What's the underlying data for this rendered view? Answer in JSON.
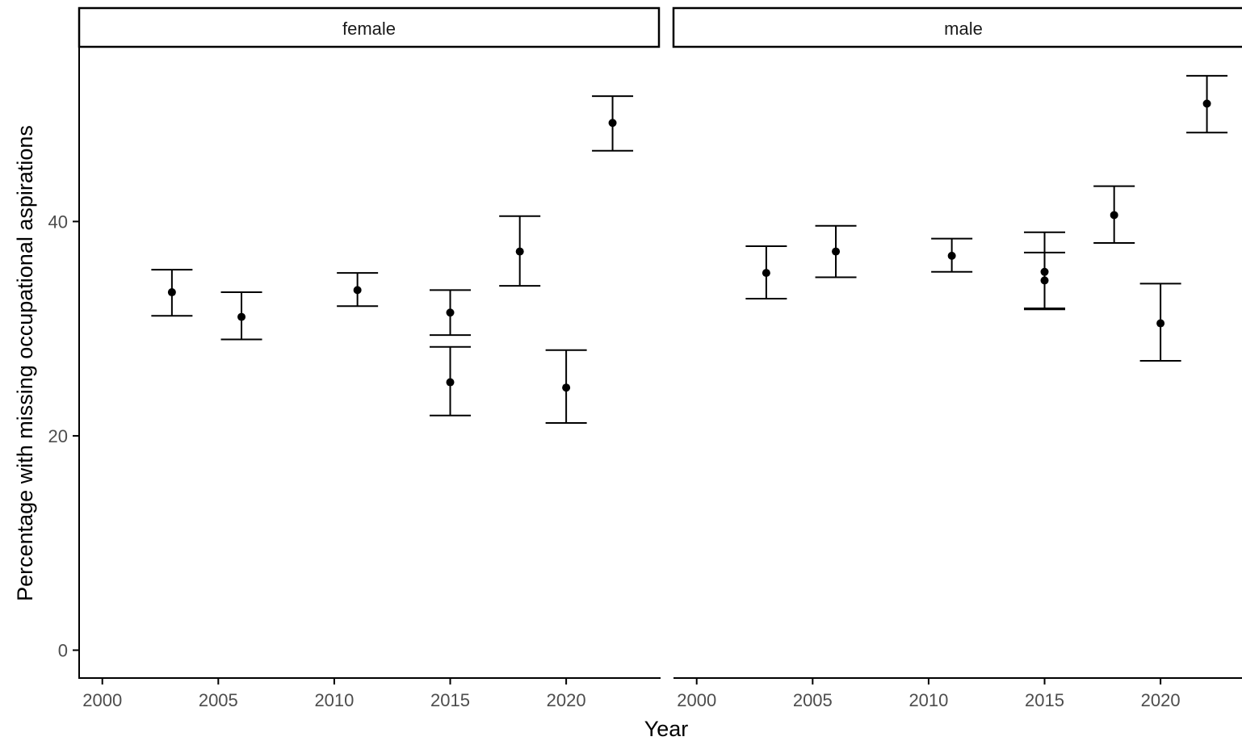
{
  "chart_data": {
    "type": "scatter",
    "subtype": "point-with-errorbars",
    "title": "",
    "xlabel": "Year",
    "ylabel": "Percentage with missing occupational aspirations",
    "xlim": [
      1999,
      2024
    ],
    "ylim": [
      -2.6,
      56.3
    ],
    "x_ticks": [
      2000,
      2005,
      2010,
      2015,
      2020
    ],
    "y_ticks": [
      0,
      20,
      40
    ],
    "grid": false,
    "legend": "none",
    "colors": {
      "point": "#000000",
      "errorbar": "#000000",
      "axis": "#000000",
      "tick_text": "#4d4d4d"
    },
    "facets": [
      {
        "label": "female",
        "points": [
          {
            "x": 2003,
            "y": 33.4,
            "ymin": 31.2,
            "ymax": 35.5
          },
          {
            "x": 2006,
            "y": 31.1,
            "ymin": 29.0,
            "ymax": 33.4
          },
          {
            "x": 2011,
            "y": 33.6,
            "ymin": 32.1,
            "ymax": 35.2
          },
          {
            "x": 2015,
            "y": 31.5,
            "ymin": 29.4,
            "ymax": 33.6
          },
          {
            "x": 2015,
            "y": 25.0,
            "ymin": 21.9,
            "ymax": 28.3
          },
          {
            "x": 2018,
            "y": 37.2,
            "ymin": 34.0,
            "ymax": 40.5
          },
          {
            "x": 2020,
            "y": 24.5,
            "ymin": 21.2,
            "ymax": 28.0
          },
          {
            "x": 2022,
            "y": 49.2,
            "ymin": 46.6,
            "ymax": 51.7
          }
        ]
      },
      {
        "label": "male",
        "points": [
          {
            "x": 2003,
            "y": 35.2,
            "ymin": 32.8,
            "ymax": 37.7
          },
          {
            "x": 2006,
            "y": 37.2,
            "ymin": 34.8,
            "ymax": 39.6
          },
          {
            "x": 2011,
            "y": 36.8,
            "ymin": 35.3,
            "ymax": 38.4
          },
          {
            "x": 2015,
            "y": 35.3,
            "ymin": 31.9,
            "ymax": 39.0
          },
          {
            "x": 2015,
            "y": 34.5,
            "ymin": 31.8,
            "ymax": 37.1
          },
          {
            "x": 2018,
            "y": 40.6,
            "ymin": 38.0,
            "ymax": 43.3
          },
          {
            "x": 2020,
            "y": 30.5,
            "ymin": 27.0,
            "ymax": 34.2
          },
          {
            "x": 2022,
            "y": 51.0,
            "ymin": 48.3,
            "ymax": 53.6
          }
        ]
      }
    ]
  }
}
